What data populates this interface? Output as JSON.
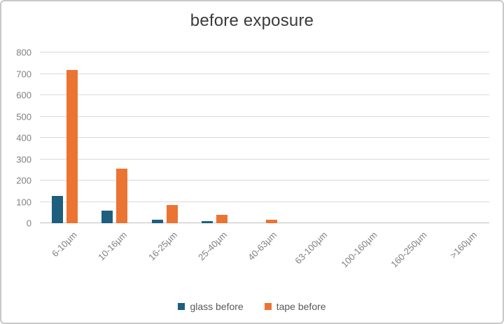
{
  "chart_data": {
    "type": "bar",
    "title": "before exposure",
    "categories": [
      "6-10µm",
      "10-16µm",
      "16-25µm",
      "25-40µm",
      "40-63µm",
      "63-100µm",
      "100-160µm",
      "160-250µm",
      ">160µm"
    ],
    "series": [
      {
        "name": "glass before",
        "color": "#1e5e7e",
        "values": [
          128,
          60,
          15,
          10,
          0,
          0,
          0,
          0,
          0
        ]
      },
      {
        "name": "tape before",
        "color": "#ec7433",
        "values": [
          717,
          257,
          86,
          38,
          18,
          0,
          0,
          0,
          0
        ]
      }
    ],
    "xlabel": "",
    "ylabel": "",
    "ylim": [
      0,
      800
    ],
    "ytick_step": 100,
    "grid": true,
    "legend_position": "bottom"
  },
  "style_colors": {
    "gridline": "#d9d9d9",
    "axis_line": "#bfbfbf",
    "tick_text": "#7f7f7f",
    "legend_text": "#595959",
    "title_text": "#3a3a3a",
    "frame_border": "#c9c9c9"
  }
}
